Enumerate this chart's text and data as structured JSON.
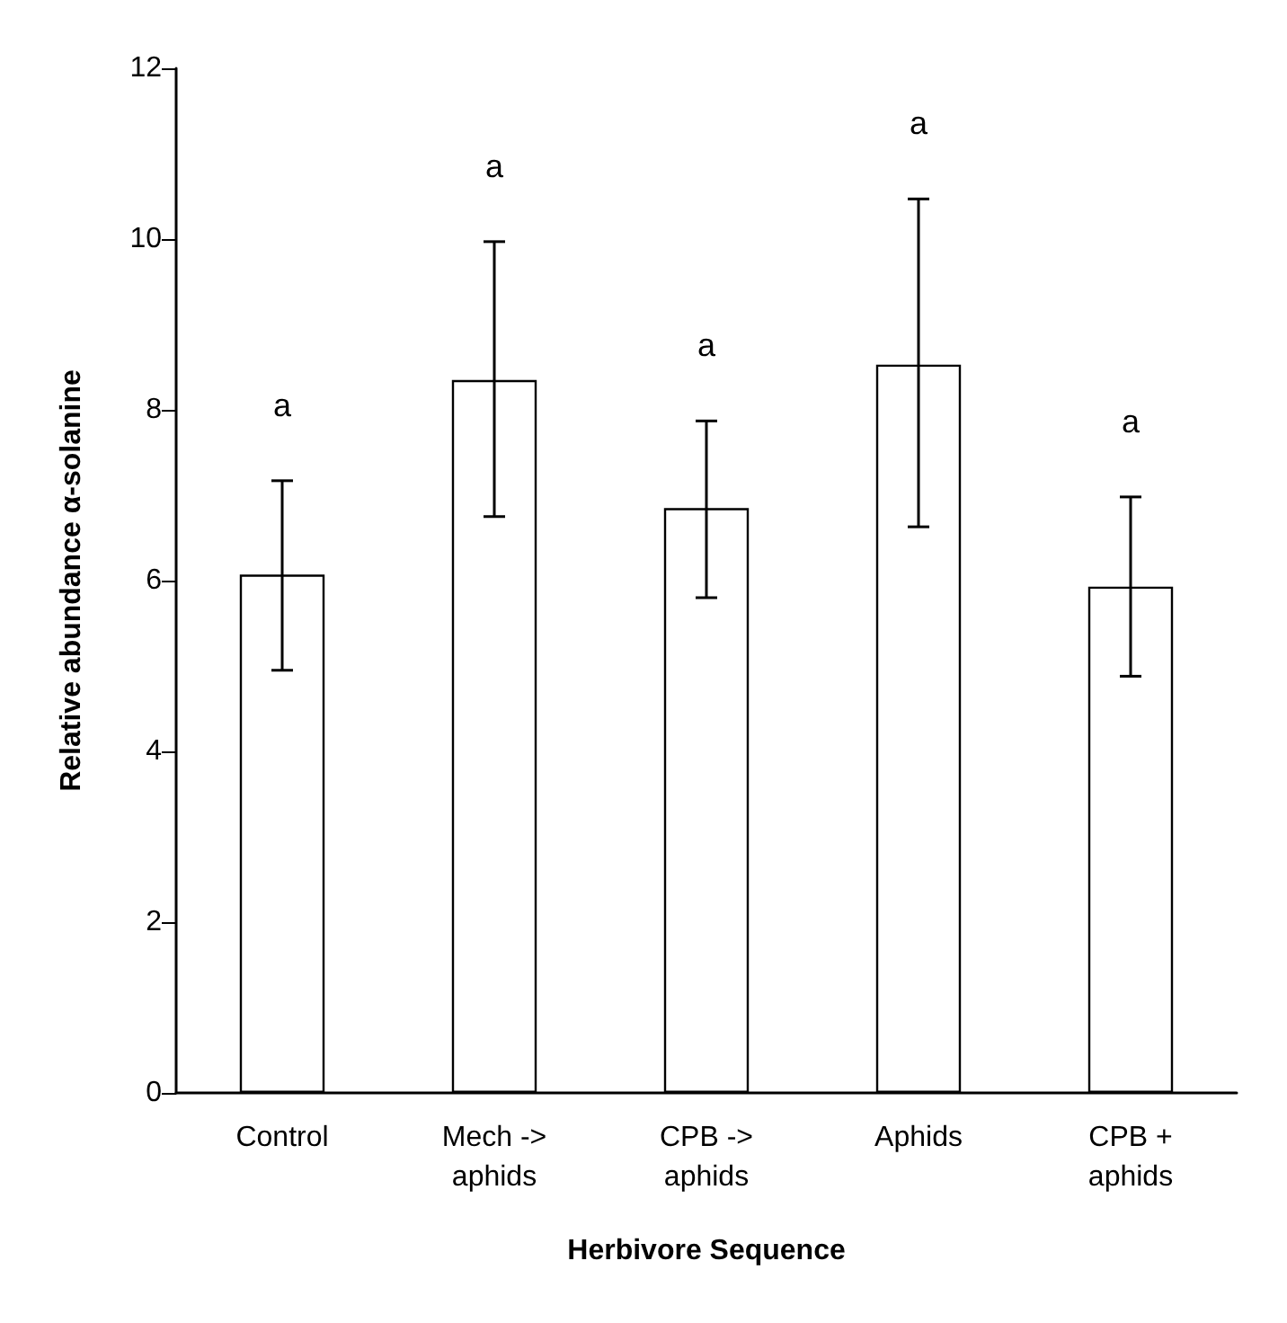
{
  "chart_data": {
    "type": "bar",
    "xlabel": "Herbivore Sequence",
    "ylabel": "Relative abundance α-solanine",
    "categories": [
      "Control",
      "Mech ->\naphids",
      "CPB ->\naphids",
      "Aphids",
      "CPB +\naphids"
    ],
    "values": [
      6.07,
      8.35,
      6.85,
      8.53,
      5.93
    ],
    "errors": [
      [
        4.95,
        7.17
      ],
      [
        6.75,
        9.97
      ],
      [
        5.8,
        7.87
      ],
      [
        6.63,
        10.47
      ],
      [
        4.88,
        6.98
      ]
    ],
    "color": "#ffffff",
    "ylim": [
      0,
      12
    ],
    "yticks": [
      0,
      2,
      4,
      6,
      8,
      10,
      12
    ],
    "grid": false,
    "annotations": [
      "a",
      "a",
      "a",
      "a",
      "a"
    ]
  }
}
